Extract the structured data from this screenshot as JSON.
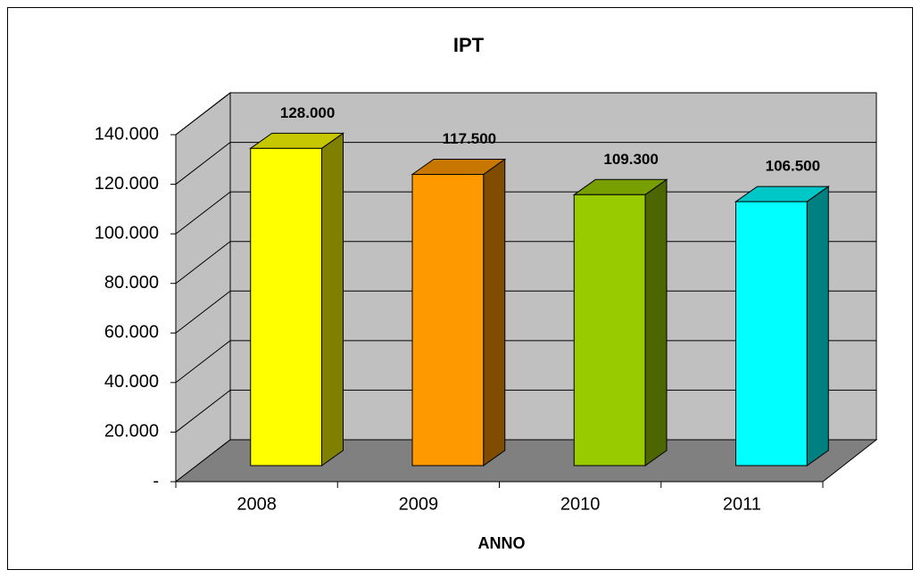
{
  "chart_data": {
    "type": "bar",
    "title": "IPT",
    "x_label": "ANNO",
    "categories": [
      "2008",
      "2009",
      "2010",
      "2011"
    ],
    "values": [
      128000,
      117500,
      109300,
      106500
    ],
    "value_labels": [
      "128.000",
      "117.500",
      "109.300",
      "106.500"
    ],
    "colors": [
      "#ffff00",
      "#ff9900",
      "#99cc00",
      "#00ffff"
    ],
    "ylim": [
      0,
      140000
    ],
    "yticks": [
      {
        "value": 0,
        "label": "-"
      },
      {
        "value": 20000,
        "label": "20.000"
      },
      {
        "value": 40000,
        "label": "40.000"
      },
      {
        "value": 60000,
        "label": "60.000"
      },
      {
        "value": 80000,
        "label": "80.000"
      },
      {
        "value": 100000,
        "label": "100.000"
      },
      {
        "value": 120000,
        "label": "120.000"
      },
      {
        "value": 140000,
        "label": "140.000"
      }
    ],
    "grid": true
  }
}
